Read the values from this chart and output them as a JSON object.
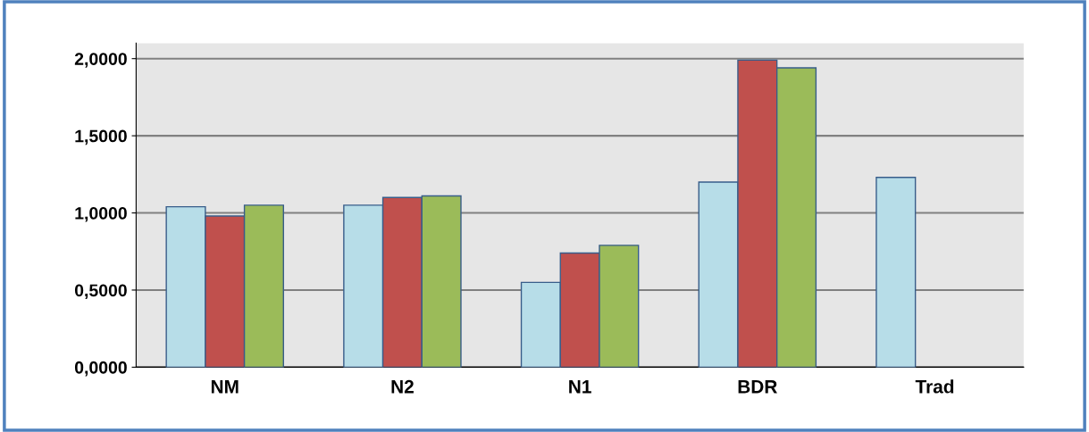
{
  "chart_data": {
    "type": "bar",
    "categories": [
      "NM",
      "N2",
      "N1",
      "BDR",
      "Trad"
    ],
    "series": [
      {
        "color": "#b7dde8",
        "values": [
          1.04,
          1.05,
          0.55,
          1.2,
          1.23
        ]
      },
      {
        "color": "#c0504d",
        "values": [
          0.98,
          1.1,
          0.74,
          1.99,
          null
        ]
      },
      {
        "color": "#9bbb59",
        "values": [
          1.05,
          1.11,
          0.79,
          1.94,
          null
        ]
      }
    ],
    "ylim": [
      0,
      2.1
    ],
    "yticks": [
      {
        "value": 0,
        "label": "0,0000"
      },
      {
        "value": 0.5,
        "label": "0,5000"
      },
      {
        "value": 1,
        "label": "1,0000"
      },
      {
        "value": 1.5,
        "label": "1,5000"
      },
      {
        "value": 2,
        "label": "2,0000"
      }
    ],
    "grid": "y"
  }
}
